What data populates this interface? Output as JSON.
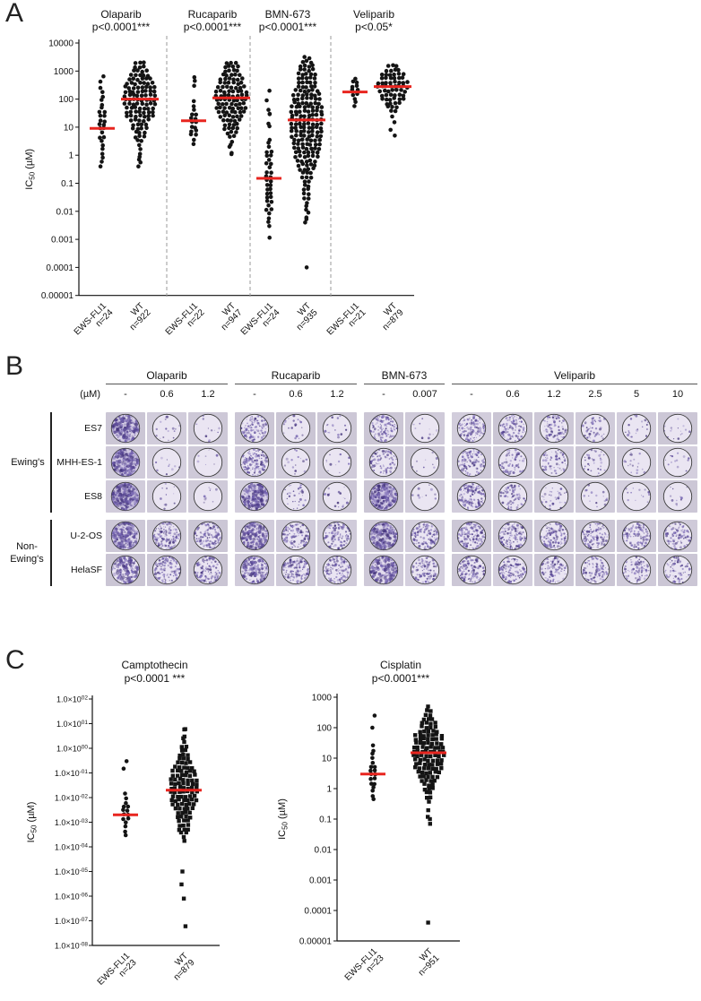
{
  "figure": {
    "panelA_label": "A",
    "panelB_label": "B",
    "panelC_label": "C"
  },
  "ylabel_parts": {
    "pre": "IC",
    "sub": "50",
    "post": " (µM)"
  },
  "colors": {
    "median_line": "#e8251f",
    "marker": "#141414",
    "stain": "#5e4c9c"
  },
  "chart_data": [
    {
      "id": "panelA",
      "type": "scatter",
      "log_scale": true,
      "ylabel": "IC50 (µM)",
      "yticks": [
        "10000",
        "1000",
        "100",
        "10",
        "1",
        "0.1",
        "0.01",
        "0.001",
        "0.0001",
        "0.00001"
      ],
      "groups": [
        {
          "drug": "Olaparib",
          "p_label": "p<0.0001***",
          "columns": [
            {
              "label": "EWS-FLI1",
              "n_label": "n=24",
              "median": 9,
              "sigma": 0.75,
              "min": 0.3,
              "max": 700,
              "rows_max": 2,
              "marker": "circle",
              "extra": [
                120,
                250,
                420,
                650,
                0.4
              ]
            },
            {
              "label": "WT",
              "n_label": "n=922",
              "median": 100,
              "sigma": 0.85,
              "min": 0.3,
              "max": 2000,
              "rows_max": 8,
              "marker": "circle",
              "extra": [
                0.4,
                0.7
              ]
            }
          ]
        },
        {
          "drug": "Rucaparib",
          "p_label": "p<0.0001***",
          "columns": [
            {
              "label": "EWS-FLI1",
              "n_label": "n=22",
              "median": 17,
              "sigma": 0.6,
              "min": 2,
              "max": 600,
              "rows_max": 2,
              "marker": "circle",
              "extra": [
                300,
                450,
                600
              ]
            },
            {
              "label": "WT",
              "n_label": "n=947",
              "median": 110,
              "sigma": 0.85,
              "min": 1,
              "max": 2000,
              "rows_max": 8,
              "marker": "circle",
              "extra": [
                1.2,
                2
              ]
            }
          ]
        },
        {
          "drug": "BMN-673",
          "p_label": "p<0.0001***",
          "columns": [
            {
              "label": "EWS-FLI1",
              "n_label": "n=24",
              "median": 0.15,
              "sigma": 1.25,
              "min": 0.0005,
              "max": 300,
              "rows_max": 1.7,
              "marker": "circle",
              "extra": [
                30,
                90,
                200
              ]
            },
            {
              "label": "WT",
              "n_label": "n=935",
              "median": 18,
              "sigma": 1.5,
              "min": 0.003,
              "max": 3000,
              "rows_max": 8,
              "marker": "circle",
              "extra": [
                0.004,
                0.006,
                0.009
              ],
              "outliers": [
                0.0001
              ]
            }
          ]
        },
        {
          "drug": "Veliparib",
          "p_label": "p<0.05*",
          "columns": [
            {
              "label": "EWS-FLI1",
              "n_label": "n=21",
              "median": 180,
              "sigma": 0.35,
              "min": 40,
              "max": 800,
              "rows_max": 2.2,
              "marker": "circle",
              "extra": []
            },
            {
              "label": "WT",
              "n_label": "n=879",
              "median": 280,
              "sigma": 0.5,
              "min": 5,
              "max": 1500,
              "rows_max": 8,
              "marker": "circle",
              "extra": [
                5,
                8,
                15
              ]
            }
          ]
        }
      ]
    },
    {
      "id": "camptothecin",
      "type": "scatter",
      "log_scale": true,
      "title": "Camptothecin",
      "p_label": "p<0.0001 ***",
      "ylabel": "IC50 (µM)",
      "ytick_base": "1.0×10",
      "ytick_exponents": [
        "02",
        "01",
        "00",
        "-01",
        "-02",
        "-03",
        "-04",
        "-05",
        "-06",
        "-07",
        "-08"
      ],
      "columns": [
        {
          "label": "EWS-FLI1",
          "n_label": "n=23",
          "median": 0.002,
          "sigma": 0.6,
          "min": 0.0001,
          "max": 0.3,
          "rows_max": 1.8,
          "marker": "circle",
          "extra": [
            0.15,
            0.3
          ]
        },
        {
          "label": "WT",
          "n_label": "n=879",
          "median": 0.02,
          "sigma": 1.05,
          "min": 4e-05,
          "max": 8,
          "rows_max": 7,
          "marker": "square",
          "extra": [
            3,
            6,
            1e-05,
            3e-06,
            8e-07
          ],
          "outliers": [
            6e-08
          ]
        }
      ]
    },
    {
      "id": "cisplatin",
      "type": "scatter",
      "log_scale": true,
      "title": "Cisplatin",
      "p_label": "p<0.0001***",
      "ylabel": "IC50 (µM)",
      "yticks": [
        "1000",
        "100",
        "10",
        "1",
        "0.1",
        "0.01",
        "0.001",
        "0.0001",
        "0.00001"
      ],
      "columns": [
        {
          "label": "EWS-FLI1",
          "n_label": "n=23",
          "median": 3,
          "sigma": 0.6,
          "min": 0.25,
          "max": 300,
          "rows_max": 1.8,
          "marker": "circle",
          "extra": [
            100,
            250
          ]
        },
        {
          "label": "WT",
          "n_label": "n=951",
          "median": 15,
          "sigma": 0.8,
          "min": 0.07,
          "max": 500,
          "rows_max": 8,
          "marker": "square",
          "extra": [
            0.07,
            0.1
          ],
          "outliers": [
            4e-05
          ]
        }
      ]
    }
  ],
  "panelB": {
    "unit_label": "(µM)",
    "drugs": [
      {
        "name": "Olaparib",
        "doses": [
          "-",
          "0.6",
          "1.2"
        ]
      },
      {
        "name": "Rucaparib",
        "doses": [
          "-",
          "0.6",
          "1.2"
        ]
      },
      {
        "name": "BMN-673",
        "doses": [
          "-",
          "0.007"
        ]
      },
      {
        "name": "Veliparib",
        "doses": [
          "-",
          "0.6",
          "1.2",
          "2.5",
          "5",
          "10"
        ]
      }
    ],
    "row_groups": [
      {
        "name": "Ewing's",
        "display_lines": [
          "Ewing's"
        ],
        "rows": [
          "ES7",
          "MHH-ES-1",
          "ES8"
        ]
      },
      {
        "name": "Non-Ewing's",
        "display_lines": [
          "Non-",
          "Ewing's"
        ],
        "rows": [
          "U-2-OS",
          "HelaSF"
        ]
      }
    ],
    "densities": {
      "ES7": [
        [
          0.85,
          0.05,
          0.03
        ],
        [
          0.5,
          0.07,
          0.05
        ],
        [
          0.45,
          0.03
        ],
        [
          0.5,
          0.45,
          0.35,
          0.18,
          0.08,
          0.05
        ]
      ],
      "MHH-ES-1": [
        [
          0.9,
          0.03,
          0.02
        ],
        [
          0.55,
          0.05,
          0.03
        ],
        [
          0.35,
          0.02
        ],
        [
          0.45,
          0.3,
          0.22,
          0.12,
          0.06,
          0.04
        ]
      ],
      "ES8": [
        [
          0.95,
          0.03,
          0.02
        ],
        [
          0.85,
          0.12,
          0.06
        ],
        [
          0.9,
          0.03
        ],
        [
          0.55,
          0.3,
          0.12,
          0.06,
          0.04,
          0.03
        ]
      ],
      "U-2-OS": [
        [
          0.8,
          0.55,
          0.5
        ],
        [
          0.75,
          0.5,
          0.45
        ],
        [
          0.8,
          0.5
        ],
        [
          0.6,
          0.55,
          0.5,
          0.45,
          0.4,
          0.35
        ]
      ],
      "HelaSF": [
        [
          0.7,
          0.5,
          0.45
        ],
        [
          0.7,
          0.55,
          0.5
        ],
        [
          0.75,
          0.45
        ],
        [
          0.5,
          0.45,
          0.4,
          0.4,
          0.35,
          0.3
        ]
      ]
    }
  }
}
